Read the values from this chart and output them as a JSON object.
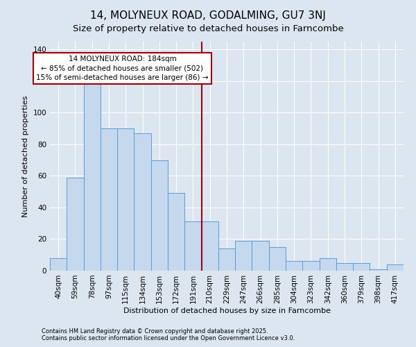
{
  "title": "14, MOLYNEUX ROAD, GODALMING, GU7 3NJ",
  "subtitle": "Size of property relative to detached houses in Farncombe",
  "xlabel": "Distribution of detached houses by size in Farncombe",
  "ylabel": "Number of detached properties",
  "categories": [
    "40sqm",
    "59sqm",
    "78sqm",
    "97sqm",
    "115sqm",
    "134sqm",
    "153sqm",
    "172sqm",
    "191sqm",
    "210sqm",
    "229sqm",
    "247sqm",
    "266sqm",
    "285sqm",
    "304sqm",
    "323sqm",
    "342sqm",
    "360sqm",
    "379sqm",
    "398sqm",
    "417sqm"
  ],
  "values": [
    8,
    59,
    118,
    90,
    90,
    87,
    70,
    49,
    31,
    31,
    14,
    19,
    19,
    15,
    6,
    6,
    8,
    5,
    5,
    1,
    4
  ],
  "bar_color": "#c5d8ed",
  "bar_edge_color": "#5b9bd5",
  "vline_color": "#9c0006",
  "ylim": [
    0,
    145
  ],
  "yticks": [
    0,
    20,
    40,
    60,
    80,
    100,
    120,
    140
  ],
  "annotation_title": "14 MOLYNEUX ROAD: 184sqm",
  "annotation_line1": "← 85% of detached houses are smaller (502)",
  "annotation_line2": "15% of semi-detached houses are larger (86) →",
  "annotation_box_color": "#9c0006",
  "footer1": "Contains HM Land Registry data © Crown copyright and database right 2025.",
  "footer2": "Contains public sector information licensed under the Open Government Licence v3.0.",
  "bg_color": "#dce6f1",
  "plot_bg_color": "#dce6f1",
  "grid_color": "#ffffff",
  "title_fontsize": 11,
  "subtitle_fontsize": 9.5,
  "axis_label_fontsize": 8,
  "tick_fontsize": 7.5,
  "footer_fontsize": 6
}
